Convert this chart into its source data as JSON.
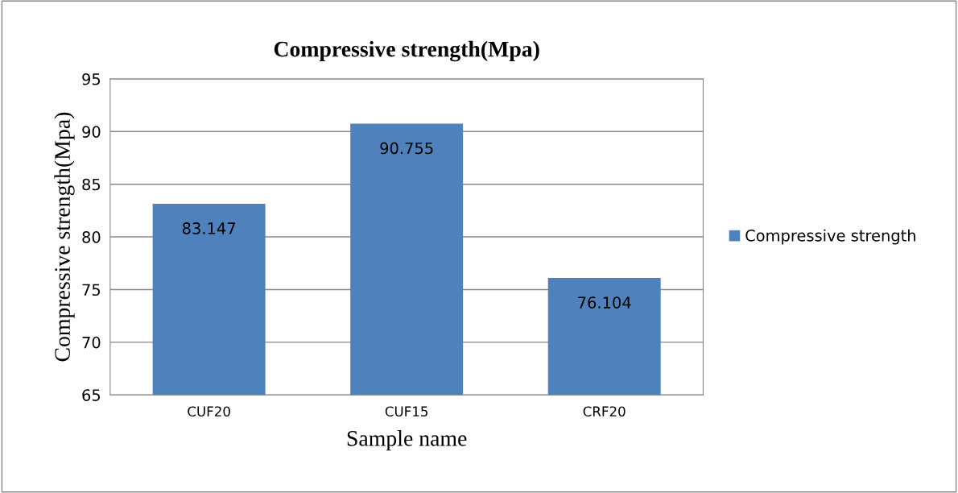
{
  "chart_data": {
    "type": "bar",
    "title": "Compressive strength(Mpa)",
    "xlabel": "Sample name",
    "ylabel": "Compressive strength(Mpa)",
    "categories": [
      "CUF20",
      "CUF15",
      "CRF20"
    ],
    "series": [
      {
        "name": "Compressive strength",
        "color": "#4f81bd",
        "values": [
          83.147,
          90.755,
          76.104
        ]
      }
    ],
    "ylim": [
      65,
      95
    ],
    "yticks": [
      65,
      70,
      75,
      80,
      85,
      90,
      95
    ],
    "grid": "y",
    "legend": "right",
    "data_labels": true
  }
}
